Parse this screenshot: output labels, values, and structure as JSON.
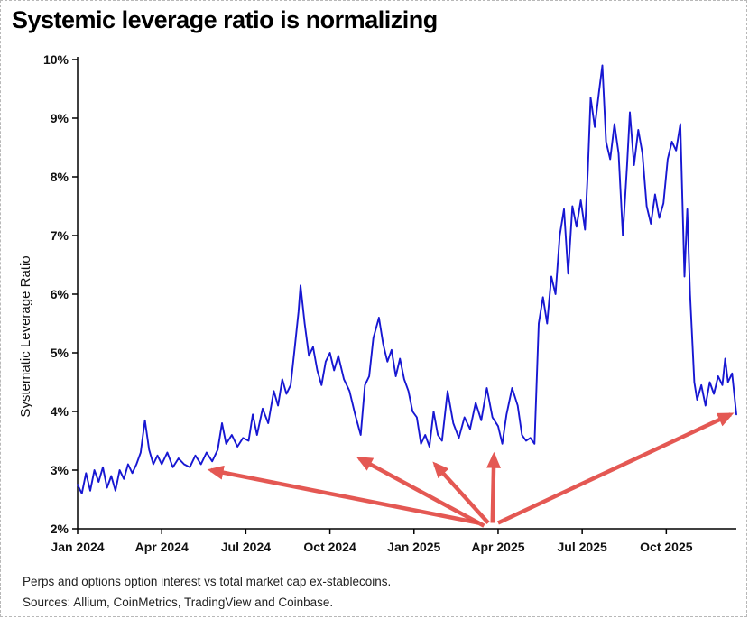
{
  "page": {
    "title": "Systemic leverage ratio is normalizing",
    "footnote1": "Perps and options option interest vs total market cap ex-stablecoins.",
    "footnote2": "Sources: Allium, CoinMetrics, TradingView and Coinbase."
  },
  "chart_data": {
    "type": "line",
    "title": "Systemic leverage ratio is normalizing",
    "xlabel": "",
    "ylabel": "Systematic Leverage Ratio",
    "x_unit": "months_since_jan_2024",
    "xlim": [
      0,
      23.5
    ],
    "ylim": [
      2,
      10
    ],
    "grid": false,
    "legend": "none",
    "line_color": "#1717d2",
    "annotation_color": "#e24a45",
    "axis_color": "#000000",
    "y_ticks": [
      {
        "v": 2,
        "label": "2%"
      },
      {
        "v": 3,
        "label": "3%"
      },
      {
        "v": 4,
        "label": "4%"
      },
      {
        "v": 5,
        "label": "5%"
      },
      {
        "v": 6,
        "label": "6%"
      },
      {
        "v": 7,
        "label": "7%"
      },
      {
        "v": 8,
        "label": "8%"
      },
      {
        "v": 9,
        "label": "9%"
      },
      {
        "v": 10,
        "label": "10%"
      }
    ],
    "x_ticks": [
      {
        "t": 0,
        "label": "Jan 2024"
      },
      {
        "t": 3,
        "label": "Apr 2024"
      },
      {
        "t": 6,
        "label": "Jul 2024"
      },
      {
        "t": 9,
        "label": "Oct 2024"
      },
      {
        "t": 12,
        "label": "Jan 2025"
      },
      {
        "t": 15,
        "label": "Apr 2025"
      },
      {
        "t": 18,
        "label": "Jul 2025"
      },
      {
        "t": 21,
        "label": "Oct 2025"
      }
    ],
    "series": [
      {
        "name": "Systematic Leverage Ratio",
        "points": [
          [
            0.0,
            2.75
          ],
          [
            0.15,
            2.6
          ],
          [
            0.3,
            2.95
          ],
          [
            0.45,
            2.65
          ],
          [
            0.6,
            3.0
          ],
          [
            0.75,
            2.8
          ],
          [
            0.9,
            3.05
          ],
          [
            1.05,
            2.7
          ],
          [
            1.2,
            2.9
          ],
          [
            1.35,
            2.65
          ],
          [
            1.5,
            3.0
          ],
          [
            1.65,
            2.85
          ],
          [
            1.8,
            3.1
          ],
          [
            1.95,
            2.95
          ],
          [
            2.1,
            3.1
          ],
          [
            2.25,
            3.3
          ],
          [
            2.4,
            3.85
          ],
          [
            2.55,
            3.35
          ],
          [
            2.7,
            3.1
          ],
          [
            2.85,
            3.25
          ],
          [
            3.0,
            3.1
          ],
          [
            3.2,
            3.3
          ],
          [
            3.4,
            3.05
          ],
          [
            3.6,
            3.2
          ],
          [
            3.8,
            3.1
          ],
          [
            4.0,
            3.05
          ],
          [
            4.2,
            3.25
          ],
          [
            4.4,
            3.1
          ],
          [
            4.6,
            3.3
          ],
          [
            4.8,
            3.15
          ],
          [
            5.0,
            3.35
          ],
          [
            5.15,
            3.8
          ],
          [
            5.3,
            3.45
          ],
          [
            5.5,
            3.6
          ],
          [
            5.7,
            3.4
          ],
          [
            5.9,
            3.55
          ],
          [
            6.1,
            3.5
          ],
          [
            6.25,
            3.95
          ],
          [
            6.4,
            3.6
          ],
          [
            6.6,
            4.05
          ],
          [
            6.8,
            3.8
          ],
          [
            7.0,
            4.35
          ],
          [
            7.15,
            4.1
          ],
          [
            7.3,
            4.55
          ],
          [
            7.45,
            4.3
          ],
          [
            7.6,
            4.45
          ],
          [
            7.75,
            5.1
          ],
          [
            7.88,
            5.7
          ],
          [
            7.95,
            6.15
          ],
          [
            8.1,
            5.5
          ],
          [
            8.25,
            4.95
          ],
          [
            8.4,
            5.1
          ],
          [
            8.55,
            4.7
          ],
          [
            8.7,
            4.45
          ],
          [
            8.85,
            4.85
          ],
          [
            9.0,
            5.0
          ],
          [
            9.15,
            4.7
          ],
          [
            9.3,
            4.95
          ],
          [
            9.5,
            4.55
          ],
          [
            9.7,
            4.35
          ],
          [
            9.9,
            3.95
          ],
          [
            10.1,
            3.6
          ],
          [
            10.25,
            4.45
          ],
          [
            10.4,
            4.6
          ],
          [
            10.55,
            5.25
          ],
          [
            10.75,
            5.6
          ],
          [
            10.9,
            5.15
          ],
          [
            11.05,
            4.85
          ],
          [
            11.2,
            5.05
          ],
          [
            11.35,
            4.6
          ],
          [
            11.5,
            4.9
          ],
          [
            11.65,
            4.55
          ],
          [
            11.8,
            4.35
          ],
          [
            11.95,
            4.0
          ],
          [
            12.1,
            3.9
          ],
          [
            12.25,
            3.45
          ],
          [
            12.4,
            3.6
          ],
          [
            12.55,
            3.4
          ],
          [
            12.7,
            4.0
          ],
          [
            12.85,
            3.6
          ],
          [
            13.0,
            3.5
          ],
          [
            13.2,
            4.35
          ],
          [
            13.4,
            3.8
          ],
          [
            13.6,
            3.55
          ],
          [
            13.8,
            3.9
          ],
          [
            14.0,
            3.7
          ],
          [
            14.2,
            4.15
          ],
          [
            14.4,
            3.85
          ],
          [
            14.6,
            4.4
          ],
          [
            14.8,
            3.9
          ],
          [
            15.0,
            3.75
          ],
          [
            15.15,
            3.45
          ],
          [
            15.3,
            3.95
          ],
          [
            15.5,
            4.4
          ],
          [
            15.7,
            4.1
          ],
          [
            15.85,
            3.6
          ],
          [
            16.0,
            3.5
          ],
          [
            16.15,
            3.55
          ],
          [
            16.3,
            3.45
          ],
          [
            16.45,
            5.5
          ],
          [
            16.6,
            5.95
          ],
          [
            16.75,
            5.5
          ],
          [
            16.9,
            6.3
          ],
          [
            17.05,
            6.0
          ],
          [
            17.2,
            7.0
          ],
          [
            17.35,
            7.45
          ],
          [
            17.5,
            6.35
          ],
          [
            17.65,
            7.5
          ],
          [
            17.8,
            7.15
          ],
          [
            17.95,
            7.6
          ],
          [
            18.1,
            7.1
          ],
          [
            18.2,
            8.1
          ],
          [
            18.3,
            9.35
          ],
          [
            18.45,
            8.85
          ],
          [
            18.6,
            9.45
          ],
          [
            18.72,
            9.9
          ],
          [
            18.85,
            8.6
          ],
          [
            19.0,
            8.3
          ],
          [
            19.15,
            8.9
          ],
          [
            19.3,
            8.4
          ],
          [
            19.45,
            7.0
          ],
          [
            19.6,
            8.2
          ],
          [
            19.7,
            9.1
          ],
          [
            19.85,
            8.2
          ],
          [
            20.0,
            8.8
          ],
          [
            20.15,
            8.4
          ],
          [
            20.3,
            7.5
          ],
          [
            20.45,
            7.2
          ],
          [
            20.6,
            7.7
          ],
          [
            20.75,
            7.3
          ],
          [
            20.9,
            7.55
          ],
          [
            21.05,
            8.3
          ],
          [
            21.2,
            8.6
          ],
          [
            21.35,
            8.45
          ],
          [
            21.5,
            8.9
          ],
          [
            21.65,
            6.3
          ],
          [
            21.75,
            7.45
          ],
          [
            21.85,
            6.0
          ],
          [
            22.0,
            4.5
          ],
          [
            22.1,
            4.2
          ],
          [
            22.25,
            4.45
          ],
          [
            22.4,
            4.1
          ],
          [
            22.55,
            4.5
          ],
          [
            22.7,
            4.3
          ],
          [
            22.85,
            4.6
          ],
          [
            23.0,
            4.45
          ],
          [
            23.1,
            4.9
          ],
          [
            23.2,
            4.5
          ],
          [
            23.35,
            4.65
          ],
          [
            23.5,
            3.95
          ]
        ]
      }
    ],
    "annotations": {
      "arrows": [
        {
          "from": [
            14.3,
            2.1
          ],
          "to": [
            4.75,
            3.0
          ]
        },
        {
          "from": [
            14.5,
            2.05
          ],
          "to": [
            10.05,
            3.2
          ]
        },
        {
          "from": [
            14.65,
            2.1
          ],
          "to": [
            12.75,
            3.1
          ]
        },
        {
          "from": [
            14.8,
            2.1
          ],
          "to": [
            14.85,
            3.25
          ]
        },
        {
          "from": [
            15.0,
            2.1
          ],
          "to": [
            23.3,
            3.95
          ]
        }
      ]
    }
  }
}
